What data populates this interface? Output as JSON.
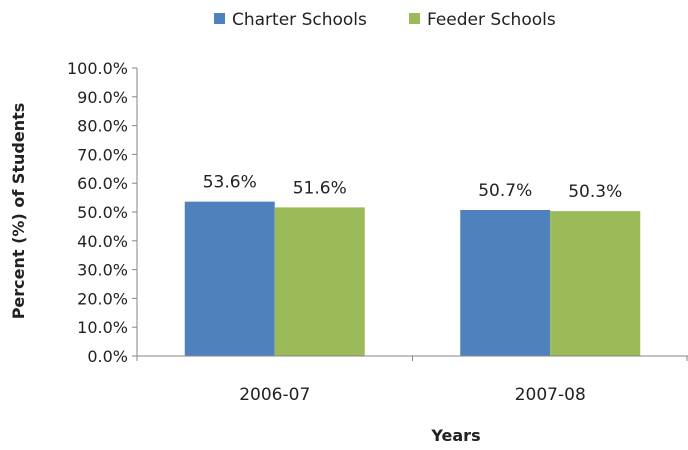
{
  "chart_data": {
    "type": "bar",
    "categories": [
      "2006-07",
      "2007-08"
    ],
    "series": [
      {
        "name": "Charter Schools",
        "values": [
          53.6,
          50.7
        ],
        "labels": [
          "53.6%",
          "50.7%"
        ],
        "color": "#4f81bd"
      },
      {
        "name": "Feeder Schools",
        "values": [
          51.6,
          50.3
        ],
        "labels": [
          "51.6%",
          "50.3%"
        ],
        "color": "#9bbb59"
      }
    ],
    "xlabel": "Years",
    "ylabel": "Percent (%) of Students",
    "ylim": [
      0,
      100
    ],
    "yticks": [
      "0.0%",
      "10.0%",
      "20.0%",
      "30.0%",
      "40.0%",
      "50.0%",
      "60.0%",
      "70.0%",
      "80.0%",
      "90.0%",
      "100.0%"
    ],
    "grid": false,
    "legend": "top-center"
  }
}
